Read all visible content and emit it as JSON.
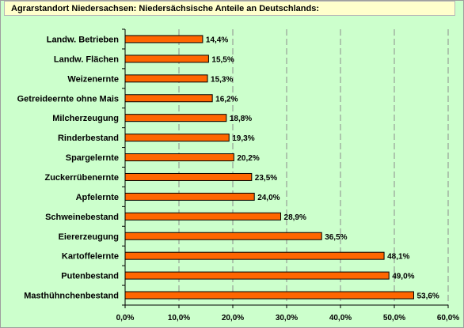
{
  "title": "Agrarstandort Niedersachsen: Niedersächsische Anteile an Deutschlands:",
  "colors": {
    "background": "#ccffcc",
    "bar": "#ff6600",
    "bar_border": "#000000",
    "title_box": "#ffffcc"
  },
  "chart_data": {
    "type": "bar",
    "orientation": "horizontal",
    "title": "Agrarstandort Niedersachsen: Niedersächsische Anteile an Deutschlands:",
    "categories": [
      "Landw. Betrieben",
      "Landw. Flächen",
      "Weizenernte",
      "Getreideernte ohne Mais",
      "Milcherzeugung",
      "Rinderbestand",
      "Spargelernte",
      "Zuckerrübenernte",
      "Apfelernte",
      "Schweinebestand",
      "Eiererzeugung",
      "Kartoffelernte",
      "Putenbestand",
      "Masthühnchenbestand"
    ],
    "values": [
      14.4,
      15.5,
      15.3,
      16.2,
      18.8,
      19.3,
      20.2,
      23.5,
      24.0,
      28.9,
      36.5,
      48.1,
      49.0,
      53.6
    ],
    "value_labels": [
      "14,4%",
      "15,5%",
      "15,3%",
      "16,2%",
      "18,8%",
      "19,3%",
      "20,2%",
      "23,5%",
      "24,0%",
      "28,9%",
      "36,5%",
      "48,1%",
      "49,0%",
      "53,6%"
    ],
    "xlim": [
      0,
      60
    ],
    "x_ticks": [
      0,
      10,
      20,
      30,
      40,
      50,
      60
    ],
    "x_tick_labels": [
      "0,0%",
      "10,0%",
      "20,0%",
      "30,0%",
      "40,0%",
      "50,0%",
      "60,0%"
    ],
    "grid": "vertical dashed",
    "legend": "none"
  }
}
